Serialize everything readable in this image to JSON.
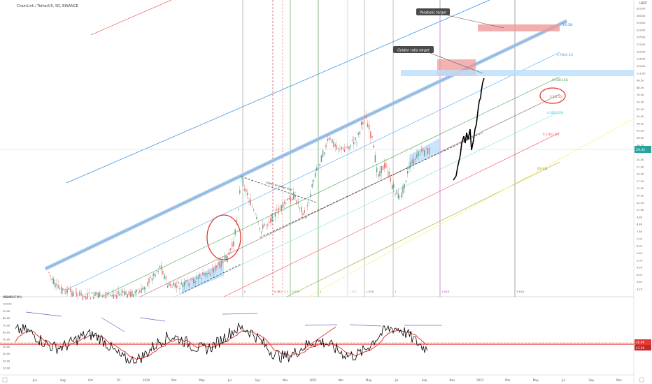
{
  "header": {
    "symbol_title": "ChainLink / TetherUS, 5D, BINANCE"
  },
  "indicator": {
    "label": "(RSI/BB/EMA)"
  },
  "price_axis": {
    "unit": "USDT",
    "ticks": [
      "320.00",
      "280.00",
      "250.00",
      "220.00",
      "195.00",
      "170.00",
      "150.00",
      "135.00",
      "120.00",
      "111.00",
      "98.50",
      "88.50",
      "78.50",
      "70.50",
      "62.50",
      "54.50",
      "48.50",
      "43.50",
      "38.50",
      "34.50",
      "30.50",
      "24.50",
      "21.50",
      "19.50",
      "17.50",
      "15.50",
      "14.00",
      "12.50",
      "11.00",
      "9.80",
      "8.80",
      "7.80",
      "7.00",
      "6.30",
      "5.60",
      "5.00",
      "4.50",
      "4.05",
      "3.65",
      "3.29"
    ],
    "current_price": "29.42"
  },
  "rsi_axis": {
    "ticks": [
      "110.00",
      "100.00",
      "90.00",
      "80.00",
      "70.00",
      "60.00",
      "50.00",
      "40.00",
      "30.00",
      "20.00",
      "10.00"
    ],
    "current_a": "46.99",
    "current_b": "43.30"
  },
  "time_axis": {
    "labels": [
      "Jun",
      "Aug",
      "Oct",
      "19",
      "2020",
      "Mar",
      "May",
      "Jul",
      "Sep",
      "Nov",
      "2021",
      "Mar",
      "May",
      "Jul",
      "Sep",
      "Nov",
      "2022",
      "Mar",
      "May",
      "Jul",
      "Sep",
      "Nov"
    ]
  },
  "callouts": [
    {
      "text": "Parabolic target"
    },
    {
      "text": "Golden ratio target"
    }
  ],
  "fib_levels": [
    {
      "text": "1(6.58)"
    },
    {
      "text": "0.786(5.35)"
    },
    {
      "text": "0.618(3.81)"
    },
    {
      "text": "0.5(2.55)"
    },
    {
      "text": "0.382(2.29)"
    },
    {
      "text": "0.236(1.40)"
    },
    {
      "text": "0(0.48)"
    }
  ],
  "time_fib_labels": [
    {
      "text": "0"
    },
    {
      "text": "0.382"
    },
    {
      "text": "0.5"
    },
    {
      "text": "0.618"
    },
    {
      "text": "1"
    },
    {
      "text": "1.382"
    },
    {
      "text": "1.618"
    },
    {
      "text": "2"
    },
    {
      "text": "2.618"
    },
    {
      "text": "3.618"
    }
  ],
  "annotation": {
    "diag_text": "Lower to mean line"
  },
  "colors": {
    "candle_up": "#5b9e88",
    "candle_down": "#e57373",
    "rsi_line": "#000000",
    "rsi_ema": "#e53935",
    "price_badge": "#26a69a",
    "rsi_badge": "#e53935",
    "callout_bg": "#4a4a4a"
  }
}
